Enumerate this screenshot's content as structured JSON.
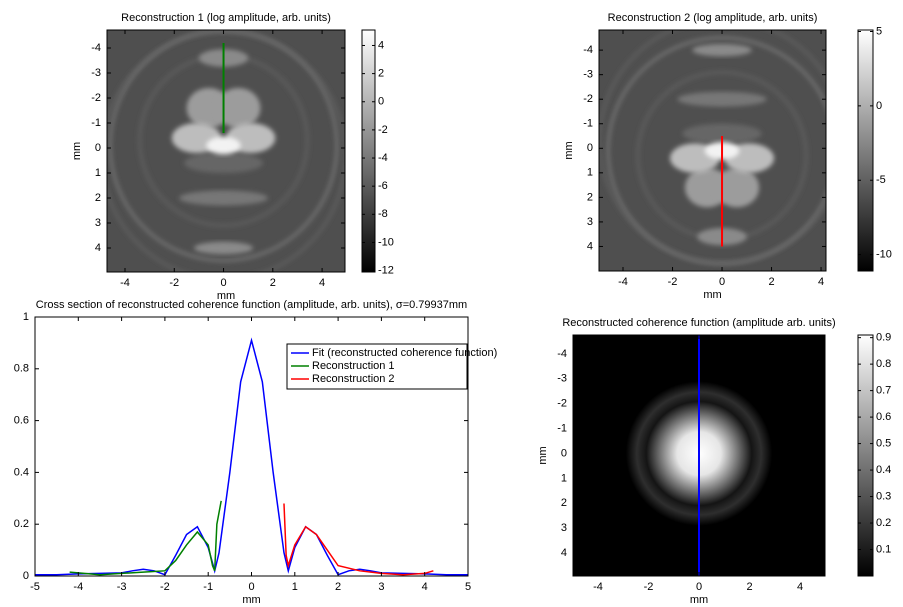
{
  "chart_data": [
    {
      "type": "image",
      "title": "Reconstruction 1 (log amplitude, arb. units)",
      "xlabel": "mm",
      "ylabel": "mm",
      "xlim": [
        -4.73,
        4.93
      ],
      "ylim": [
        -4.72,
        4.96
      ],
      "y_reversed": true,
      "xticks": [
        -4,
        -2,
        0,
        2,
        4
      ],
      "yticks": [
        -4,
        -3,
        -2,
        -1,
        0,
        1,
        2,
        3,
        4
      ],
      "clim": [
        -12.1,
        5.1
      ],
      "cticks": [
        4,
        2,
        0,
        -2,
        -4,
        -6,
        -8,
        -10,
        -12
      ],
      "colormap": "gray",
      "lines": [
        {
          "color": "#008000",
          "x": [
            0,
            0
          ],
          "y": [
            -4.2,
            -0.6
          ]
        }
      ]
    },
    {
      "type": "image",
      "title": "Reconstruction 2 (log amplitude, arb. units)",
      "xlabel": "mm",
      "ylabel": "mm",
      "xlim": [
        -4.97,
        4.2
      ],
      "ylim": [
        -4.82,
        5.0
      ],
      "y_reversed": true,
      "xticks": [
        -4,
        -2,
        0,
        2,
        4
      ],
      "yticks": [
        -4,
        -3,
        -2,
        -1,
        0,
        1,
        2,
        3,
        4
      ],
      "clim": [
        -11.1,
        5.1
      ],
      "cticks": [
        5,
        0,
        -5,
        -10
      ],
      "colormap": "gray",
      "lines": [
        {
          "color": "#ff0000",
          "x": [
            0,
            0
          ],
          "y": [
            -0.5,
            4.0
          ]
        }
      ]
    },
    {
      "type": "line",
      "title": "Cross section of reconstructed coherence function (amplitude, arb. units), σ=0.79937mm",
      "xlabel": "mm",
      "xlim": [
        -5,
        5
      ],
      "ylim": [
        0,
        1
      ],
      "xticks": [
        -5,
        -4,
        -3,
        -2,
        -1,
        0,
        1,
        2,
        3,
        4,
        5
      ],
      "yticks": [
        0,
        0.2,
        0.4,
        0.6,
        0.8,
        1
      ],
      "legend": "upper right",
      "series": [
        {
          "name": "Fit (reconstructed coherence function)",
          "color": "#0000ff",
          "x": [
            -5,
            -4.5,
            -4,
            -3.5,
            -3,
            -2.75,
            -2.5,
            -2.25,
            -2,
            -1.75,
            -1.5,
            -1.25,
            -1,
            -0.85,
            -0.75,
            -0.5,
            -0.25,
            0,
            0.25,
            0.5,
            0.75,
            0.85,
            1,
            1.25,
            1.5,
            1.75,
            2,
            2.25,
            2.5,
            2.75,
            3,
            3.5,
            4,
            4.5,
            5
          ],
          "values": [
            0.005,
            0.005,
            0.008,
            0.01,
            0.012,
            0.02,
            0.026,
            0.02,
            0.005,
            0.08,
            0.16,
            0.19,
            0.11,
            0.02,
            0.09,
            0.4,
            0.75,
            0.91,
            0.75,
            0.4,
            0.09,
            0.02,
            0.11,
            0.19,
            0.16,
            0.08,
            0.005,
            0.02,
            0.026,
            0.02,
            0.012,
            0.01,
            0.008,
            0.005,
            0.005
          ]
        },
        {
          "name": "Reconstruction 1",
          "color": "#008000",
          "x": [
            -4.2,
            -3.5,
            -3,
            -2.5,
            -2,
            -1.75,
            -1.5,
            -1.25,
            -1,
            -0.9,
            -0.85,
            -0.8,
            -0.7
          ],
          "values": [
            0.015,
            0.005,
            0.01,
            0.015,
            0.02,
            0.06,
            0.12,
            0.17,
            0.12,
            0.04,
            0.02,
            0.2,
            0.29
          ]
        },
        {
          "name": "Reconstruction 2",
          "color": "#ff0000",
          "x": [
            0.75,
            0.8,
            0.85,
            1,
            1.25,
            1.5,
            1.75,
            2,
            2.5,
            3,
            3.5,
            4,
            4.2
          ],
          "values": [
            0.28,
            0.08,
            0.04,
            0.12,
            0.19,
            0.16,
            0.1,
            0.04,
            0.02,
            0.01,
            0.005,
            0.01,
            0.02
          ]
        }
      ]
    },
    {
      "type": "image",
      "title": "Reconstructed coherence function (amplitude arb. units)",
      "xlabel": "mm",
      "ylabel": "mm",
      "xlim": [
        -4.99,
        4.99
      ],
      "ylim": [
        -4.76,
        4.92
      ],
      "y_reversed": true,
      "xticks": [
        -4,
        -2,
        0,
        2,
        4
      ],
      "yticks": [
        -4,
        -3,
        -2,
        -1,
        0,
        1,
        2,
        3,
        4
      ],
      "clim": [
        0,
        0.91
      ],
      "cticks": [
        0.9,
        0.8,
        0.7,
        0.6,
        0.5,
        0.4,
        0.3,
        0.2,
        0.1
      ],
      "colormap": "gray",
      "lines": [
        {
          "color": "#0000ff",
          "x": [
            0,
            0
          ],
          "y": [
            -4.76,
            4.92
          ]
        }
      ]
    }
  ]
}
